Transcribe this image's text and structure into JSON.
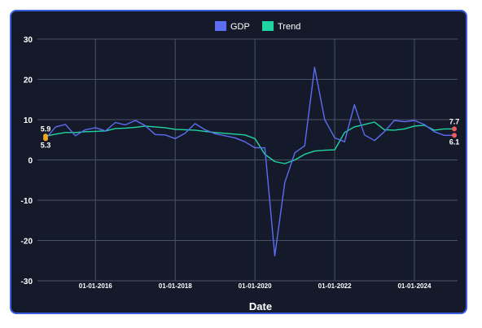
{
  "chart_data": {
    "type": "line",
    "title": "",
    "xlabel": "Date",
    "ylabel": "",
    "ylim": [
      -30,
      30
    ],
    "yticks": [
      30,
      20,
      10,
      0,
      -10,
      -20,
      -30
    ],
    "xtick_labels": [
      "01-01-2016",
      "01-01-2018",
      "01-01-2020",
      "01-01-2022",
      "01-01-2024"
    ],
    "xtick_dates": [
      "2016-01-01",
      "2018-01-01",
      "2020-01-01",
      "2022-01-01",
      "2024-01-01"
    ],
    "xlim": [
      "2014-10-01",
      "2025-01-01"
    ],
    "grid": true,
    "legend": "top-center",
    "x": [
      "2014-10-01",
      "2015-01-01",
      "2015-04-01",
      "2015-07-01",
      "2015-10-01",
      "2016-01-01",
      "2016-04-01",
      "2016-07-01",
      "2016-10-01",
      "2017-01-01",
      "2017-04-01",
      "2017-07-01",
      "2017-10-01",
      "2018-01-01",
      "2018-04-01",
      "2018-07-01",
      "2018-10-01",
      "2019-01-01",
      "2019-04-01",
      "2019-07-01",
      "2019-10-01",
      "2020-01-01",
      "2020-04-01",
      "2020-07-01",
      "2020-10-01",
      "2021-01-01",
      "2021-04-01",
      "2021-07-01",
      "2021-10-01",
      "2022-01-01",
      "2022-04-01",
      "2022-07-01",
      "2022-10-01",
      "2023-01-01",
      "2023-04-01",
      "2023-07-01",
      "2023-10-01",
      "2024-01-01",
      "2024-04-01",
      "2024-07-01",
      "2024-10-01",
      "2025-01-01"
    ],
    "series": [
      {
        "name": "GDP",
        "color": "#5b6df0",
        "values": [
          5.3,
          8.2,
          8.8,
          6.0,
          7.5,
          8.0,
          7.2,
          9.3,
          8.7,
          9.8,
          8.5,
          6.3,
          6.2,
          5.3,
          6.6,
          9.0,
          7.5,
          6.5,
          6.0,
          5.5,
          4.5,
          3.0,
          3.0,
          -23.8,
          -5.6,
          1.8,
          3.5,
          23.0,
          10.0,
          5.5,
          4.5,
          13.7,
          6.2,
          4.8,
          7.0,
          9.8,
          9.5,
          9.8,
          8.8,
          7.0,
          6.1,
          6.1
        ]
      },
      {
        "name": "Trend",
        "color": "#1fd6a0",
        "values": [
          5.9,
          6.4,
          6.8,
          6.8,
          7.0,
          7.1,
          7.2,
          7.8,
          7.9,
          8.1,
          8.4,
          8.2,
          8.0,
          7.6,
          7.5,
          7.4,
          7.1,
          6.8,
          6.6,
          6.4,
          6.2,
          5.3,
          1.4,
          -0.4,
          -0.9,
          0.0,
          1.4,
          2.2,
          2.4,
          2.5,
          6.8,
          8.2,
          8.8,
          9.4,
          7.5,
          7.4,
          7.7,
          8.4,
          8.6,
          7.4,
          7.7,
          7.7
        ]
      }
    ],
    "annotations": [
      {
        "series": "Trend",
        "position": "start",
        "label": "5.9",
        "value": 5.9,
        "color": "#f5a623"
      },
      {
        "series": "GDP",
        "position": "start",
        "label": "5.3",
        "value": 5.3,
        "color": "#f5a623"
      },
      {
        "series": "Trend",
        "position": "end",
        "label": "7.7",
        "value": 7.7,
        "color": "#ef5a5a"
      },
      {
        "series": "GDP",
        "position": "end",
        "label": "6.1",
        "value": 6.1,
        "color": "#ef5a5a"
      }
    ]
  }
}
